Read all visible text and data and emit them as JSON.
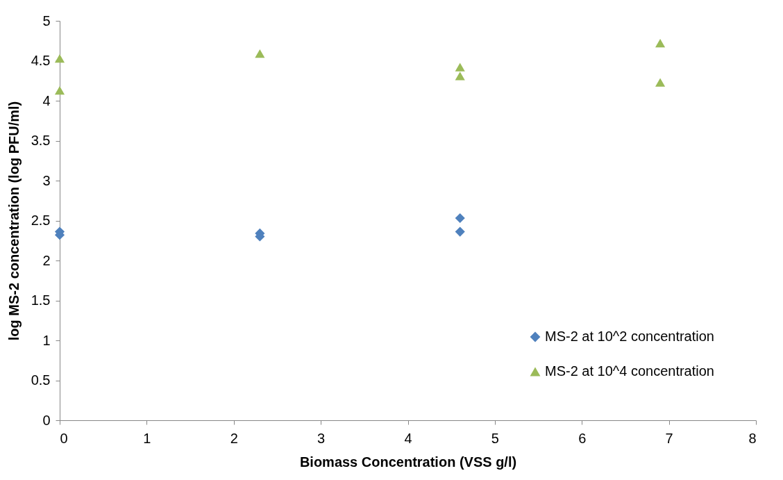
{
  "chart_data": {
    "type": "scatter",
    "xlabel": "Biomass  Concentration  (VSS g/l)",
    "ylabel": "log MS-2 concentration (log PFU/ml)",
    "xlim": [
      0,
      8
    ],
    "xticks": [
      0,
      1,
      2,
      3,
      4,
      5,
      6,
      7,
      8
    ],
    "ylim": [
      0,
      5
    ],
    "yticks": [
      0,
      0.5,
      1,
      1.5,
      2,
      2.5,
      3,
      3.5,
      4,
      4.5,
      5
    ],
    "grid": false,
    "legend": "bottom right",
    "series": [
      {
        "name": "MS-2 at 10^2 concentration",
        "color": "#4f81bd",
        "marker": "diamond",
        "x": [
          0,
          0,
          2.3,
          2.3,
          4.6,
          4.6
        ],
        "values": [
          2.36,
          2.32,
          2.34,
          2.3,
          2.53,
          2.36
        ]
      },
      {
        "name": "MS-2 at 10^4 concentration",
        "color": "#9bbb59",
        "marker": "triangle",
        "x": [
          0,
          0,
          2.3,
          4.6,
          4.6,
          6.9,
          6.9
        ],
        "values": [
          4.53,
          4.13,
          4.59,
          4.42,
          4.31,
          4.72,
          4.23
        ]
      }
    ]
  }
}
